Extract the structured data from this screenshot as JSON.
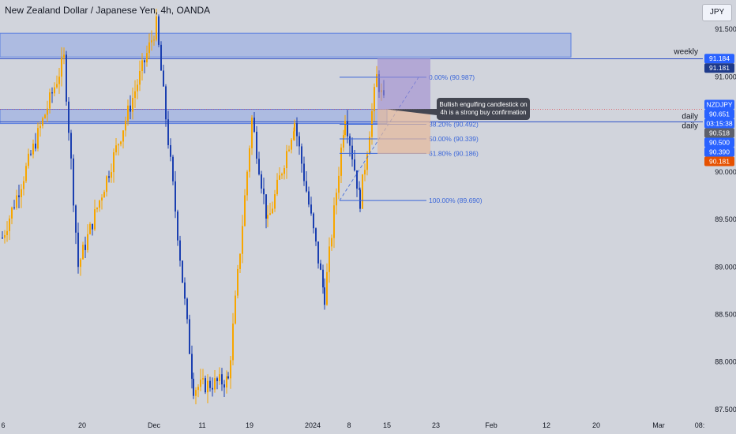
{
  "header": {
    "title": "New Zealand Dollar / Japanese Yen, 4h, OANDA",
    "currency_button": "JPY"
  },
  "colors": {
    "background": "#d1d4dc",
    "bull": "#f7a600",
    "bear": "#1b3fb0",
    "zone": "#8fa6e6",
    "fib": "#3a66d9",
    "annotation_bg": "#434651",
    "long_profit": "#9f8bd0",
    "long_loss": "#e7b99a"
  },
  "chart_data": {
    "type": "candlestick",
    "symbol": "NZDJPY",
    "timeframe": "4h",
    "ylim": [
      87.4,
      91.8
    ],
    "y_ticks": [
      "91.500",
      "91.000",
      "90.000",
      "89.500",
      "89.000",
      "88.500",
      "88.000",
      "87.500"
    ],
    "x_ticks": [
      "6",
      "20",
      "Dec",
      "11",
      "19",
      "2024",
      "8",
      "15",
      "23",
      "Feb",
      "12",
      "20",
      "Mar",
      "08:"
    ],
    "key_points": [
      {
        "label": "Nov 6",
        "value": 89.3
      },
      {
        "label": "Nov 17 high",
        "value": 91.18
      },
      {
        "label": "Nov 24",
        "value": 89.0
      },
      {
        "label": "Dec 1 high",
        "value": 91.54
      },
      {
        "label": "Dec 7 low",
        "value": 87.72
      },
      {
        "label": "Dec 15 low",
        "value": 87.8
      },
      {
        "label": "Dec 20 high",
        "value": 90.55
      },
      {
        "label": "Jan 2 low",
        "value": 89.45
      },
      {
        "label": "Jan 5 high",
        "value": 90.52
      },
      {
        "label": "Jan 8 low",
        "value": 88.68
      },
      {
        "label": "Jan 11 high",
        "value": 90.6
      },
      {
        "label": "Jan 12 low",
        "value": 89.69
      },
      {
        "label": "Jan 14 high",
        "value": 90.99
      },
      {
        "label": "last",
        "value": 90.651
      }
    ],
    "zones": [
      {
        "name": "weekly",
        "top": 91.45,
        "bottom": 91.2
      },
      {
        "name": "daily",
        "top": 90.65,
        "bottom": 90.5
      }
    ],
    "horizontal_lines": [
      {
        "label": "weekly",
        "value": 91.181
      },
      {
        "label": "daily",
        "value": 90.518
      }
    ],
    "fibonacci": [
      {
        "label": "0.00% (90.987)",
        "value": 90.987
      },
      {
        "label": "38.20% (90.492)",
        "value": 90.492
      },
      {
        "label": "50.00% (90.339)",
        "value": 90.339
      },
      {
        "label": "61.80% (90.186)",
        "value": 90.186
      },
      {
        "label": "100.00% (89.690)",
        "value": 89.69
      }
    ],
    "position": {
      "type": "long",
      "entry": 90.651,
      "target": 91.184,
      "stop": 90.181
    },
    "price_labels": [
      {
        "text": "91.184",
        "value": 91.184,
        "color": "#2962ff"
      },
      {
        "text": "91.181",
        "value": 91.181,
        "color": "#1e3a8a"
      },
      {
        "text": "NZDJPY",
        "value": 90.7,
        "color": "#2962ff"
      },
      {
        "text": "90.651",
        "value": 90.651,
        "color": "#2962ff"
      },
      {
        "text": "03:15:38",
        "value": 90.6,
        "color": "#2962ff"
      },
      {
        "text": "90.518",
        "value": 90.518,
        "color": "#5d606b"
      },
      {
        "text": "90.500",
        "value": 90.5,
        "color": "#2962ff"
      },
      {
        "text": "90.390",
        "value": 90.39,
        "color": "#2962ff"
      },
      {
        "text": "90.181",
        "value": 90.181,
        "color": "#e65100"
      }
    ],
    "annotation": "Bullish engulfing candlestick on 4h is a strong buy confirmation",
    "labels": {
      "weekly": "weekly",
      "daily": "daily",
      "daily_overlap": "daily"
    }
  }
}
